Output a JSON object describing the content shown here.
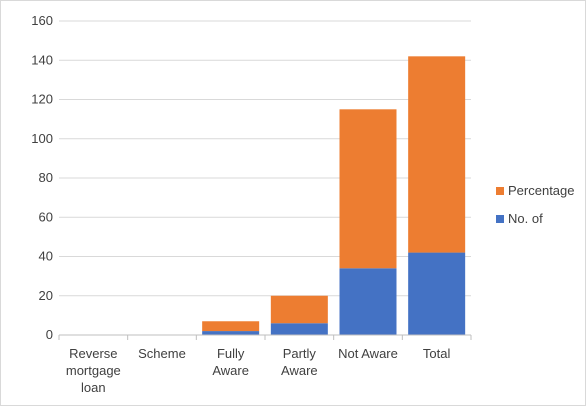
{
  "chart_data": {
    "type": "bar",
    "stacked": true,
    "categories": [
      [
        "Reverse",
        "mortgage",
        "loan"
      ],
      [
        "Scheme"
      ],
      [
        "Fully",
        "Aware"
      ],
      [
        "Partly",
        "Aware"
      ],
      [
        "Not Aware"
      ],
      [
        "Total"
      ]
    ],
    "series": [
      {
        "name": "No. of",
        "color": "#4472c4",
        "values": [
          0,
          0,
          2,
          6,
          34,
          42
        ]
      },
      {
        "name": "Percentage",
        "color": "#ed7d31",
        "values": [
          0,
          0,
          5,
          14,
          81,
          100
        ]
      }
    ],
    "ylim": [
      0,
      160
    ],
    "yticks": [
      0,
      20,
      40,
      60,
      80,
      100,
      120,
      140,
      160
    ],
    "grid": true,
    "legend": "right",
    "title": "",
    "xlabel": "",
    "ylabel": ""
  }
}
